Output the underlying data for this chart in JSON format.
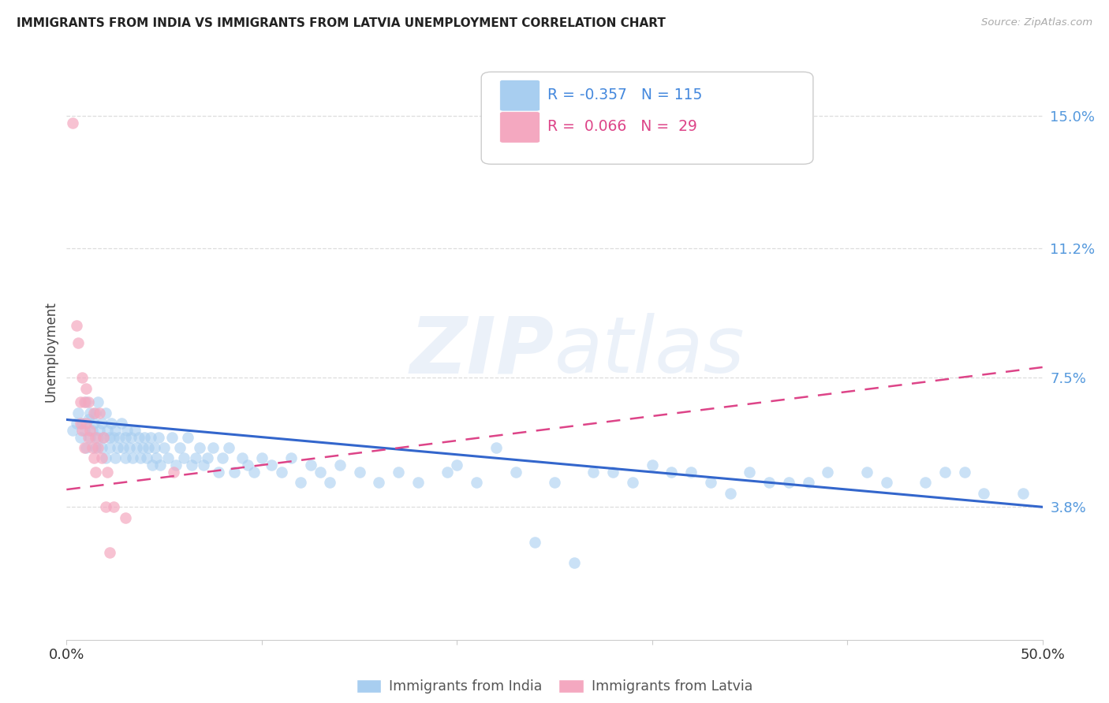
{
  "title": "IMMIGRANTS FROM INDIA VS IMMIGRANTS FROM LATVIA UNEMPLOYMENT CORRELATION CHART",
  "source": "Source: ZipAtlas.com",
  "ylabel": "Unemployment",
  "ytick_labels": [
    "15.0%",
    "11.2%",
    "7.5%",
    "3.8%"
  ],
  "ytick_values": [
    0.15,
    0.112,
    0.075,
    0.038
  ],
  "xlim": [
    0.0,
    0.5
  ],
  "ylim": [
    0.0,
    0.165
  ],
  "india_color": "#a8cef0",
  "latvia_color": "#f4a8c0",
  "india_trend_color": "#3366cc",
  "latvia_trend_color": "#dd4488",
  "india_trend_x": [
    0.0,
    0.5
  ],
  "india_trend_y": [
    0.063,
    0.038
  ],
  "latvia_trend_x": [
    0.0,
    0.5
  ],
  "latvia_trend_y": [
    0.043,
    0.078
  ],
  "india_scatter_x": [
    0.003,
    0.005,
    0.006,
    0.007,
    0.008,
    0.009,
    0.01,
    0.01,
    0.011,
    0.012,
    0.012,
    0.013,
    0.014,
    0.015,
    0.015,
    0.016,
    0.016,
    0.017,
    0.018,
    0.018,
    0.019,
    0.02,
    0.02,
    0.021,
    0.022,
    0.022,
    0.023,
    0.024,
    0.025,
    0.025,
    0.026,
    0.027,
    0.028,
    0.029,
    0.03,
    0.03,
    0.031,
    0.032,
    0.033,
    0.034,
    0.035,
    0.036,
    0.037,
    0.038,
    0.039,
    0.04,
    0.041,
    0.042,
    0.043,
    0.044,
    0.045,
    0.046,
    0.047,
    0.048,
    0.05,
    0.052,
    0.054,
    0.056,
    0.058,
    0.06,
    0.062,
    0.064,
    0.066,
    0.068,
    0.07,
    0.072,
    0.075,
    0.078,
    0.08,
    0.083,
    0.086,
    0.09,
    0.093,
    0.096,
    0.1,
    0.105,
    0.11,
    0.115,
    0.12,
    0.125,
    0.13,
    0.135,
    0.14,
    0.15,
    0.16,
    0.17,
    0.18,
    0.195,
    0.21,
    0.23,
    0.25,
    0.27,
    0.29,
    0.31,
    0.33,
    0.35,
    0.37,
    0.39,
    0.42,
    0.45,
    0.47,
    0.49,
    0.3,
    0.32,
    0.38,
    0.41,
    0.44,
    0.46,
    0.34,
    0.36,
    0.28,
    0.26,
    0.24,
    0.22,
    0.2
  ],
  "india_scatter_y": [
    0.06,
    0.062,
    0.065,
    0.058,
    0.062,
    0.06,
    0.068,
    0.055,
    0.063,
    0.065,
    0.058,
    0.06,
    0.062,
    0.065,
    0.055,
    0.068,
    0.058,
    0.06,
    0.062,
    0.055,
    0.058,
    0.065,
    0.052,
    0.06,
    0.058,
    0.055,
    0.062,
    0.058,
    0.06,
    0.052,
    0.055,
    0.058,
    0.062,
    0.055,
    0.058,
    0.052,
    0.06,
    0.055,
    0.058,
    0.052,
    0.06,
    0.055,
    0.058,
    0.052,
    0.055,
    0.058,
    0.052,
    0.055,
    0.058,
    0.05,
    0.055,
    0.052,
    0.058,
    0.05,
    0.055,
    0.052,
    0.058,
    0.05,
    0.055,
    0.052,
    0.058,
    0.05,
    0.052,
    0.055,
    0.05,
    0.052,
    0.055,
    0.048,
    0.052,
    0.055,
    0.048,
    0.052,
    0.05,
    0.048,
    0.052,
    0.05,
    0.048,
    0.052,
    0.045,
    0.05,
    0.048,
    0.045,
    0.05,
    0.048,
    0.045,
    0.048,
    0.045,
    0.048,
    0.045,
    0.048,
    0.045,
    0.048,
    0.045,
    0.048,
    0.045,
    0.048,
    0.045,
    0.048,
    0.045,
    0.048,
    0.042,
    0.042,
    0.05,
    0.048,
    0.045,
    0.048,
    0.045,
    0.048,
    0.042,
    0.045,
    0.048,
    0.022,
    0.028,
    0.055,
    0.05
  ],
  "latvia_scatter_x": [
    0.003,
    0.005,
    0.006,
    0.007,
    0.007,
    0.008,
    0.008,
    0.009,
    0.009,
    0.01,
    0.01,
    0.011,
    0.011,
    0.012,
    0.013,
    0.014,
    0.014,
    0.015,
    0.015,
    0.016,
    0.017,
    0.018,
    0.019,
    0.02,
    0.021,
    0.022,
    0.024,
    0.03,
    0.055
  ],
  "latvia_scatter_y": [
    0.148,
    0.09,
    0.085,
    0.068,
    0.062,
    0.075,
    0.06,
    0.068,
    0.055,
    0.072,
    0.062,
    0.068,
    0.058,
    0.06,
    0.055,
    0.065,
    0.052,
    0.058,
    0.048,
    0.055,
    0.065,
    0.052,
    0.058,
    0.038,
    0.048,
    0.025,
    0.038,
    0.035,
    0.048
  ],
  "watermark_zip": "ZIP",
  "watermark_atlas": "atlas",
  "background_color": "#ffffff",
  "grid_color": "#dddddd",
  "legend_india_label_r": "R = -0.357",
  "legend_india_label_n": "N = 115",
  "legend_latvia_label_r": "R =  0.066",
  "legend_latvia_label_n": "N =  29"
}
